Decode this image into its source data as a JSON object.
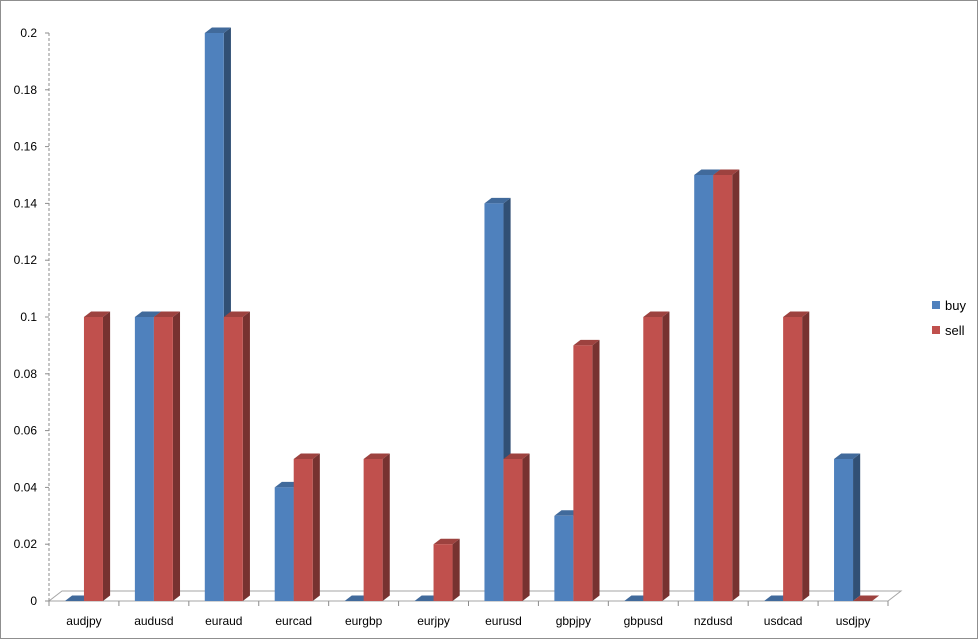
{
  "chart_data": {
    "type": "bar",
    "style": "3d-clustered-column",
    "categories": [
      "audjpy",
      "audusd",
      "euraud",
      "eurcad",
      "eurgbp",
      "eurjpy",
      "eurusd",
      "gbpjpy",
      "gbpusd",
      "nzdusd",
      "usdcad",
      "usdjpy"
    ],
    "series": [
      {
        "name": "buy",
        "color": "#4F81BD",
        "values": [
          0,
          0.1,
          0.2,
          0.04,
          0,
          0,
          0.14,
          0.03,
          0,
          0.15,
          0,
          0.05
        ]
      },
      {
        "name": "sell",
        "color": "#C0504D",
        "values": [
          0.1,
          0.1,
          0.1,
          0.05,
          0.05,
          0.02,
          0.05,
          0.09,
          0.1,
          0.15,
          0.1,
          0
        ]
      }
    ],
    "y_ticks": [
      "0",
      "0.02",
      "0.04",
      "0.06",
      "0.08",
      "0.1",
      "0.12",
      "0.14",
      "0.16",
      "0.18",
      "0.2"
    ],
    "ylim": [
      0,
      0.2
    ],
    "title": "",
    "xlabel": "",
    "ylabel": "",
    "grid": false,
    "legend": "right"
  }
}
